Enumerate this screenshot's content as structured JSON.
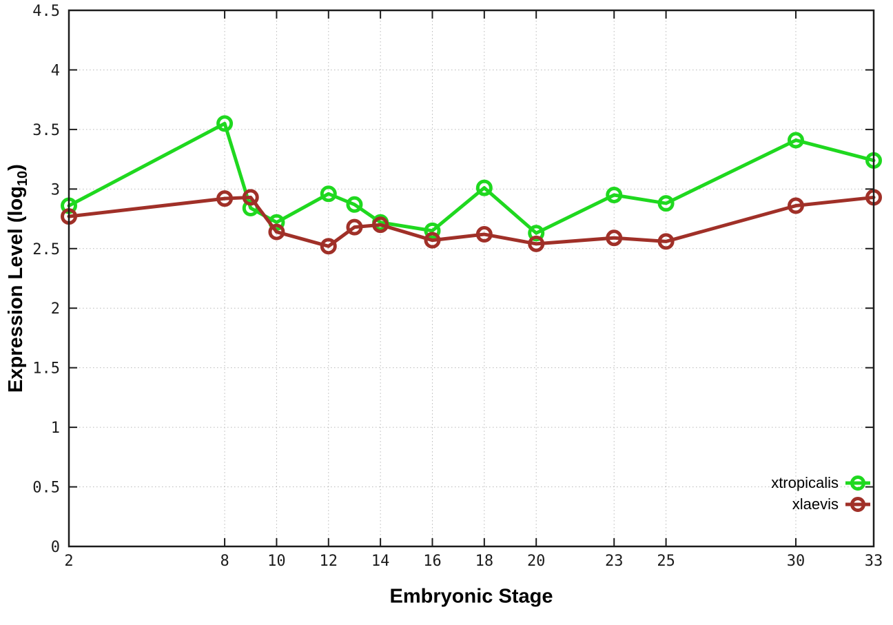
{
  "chart_data": {
    "type": "line",
    "title": "",
    "xlabel": "Embryonic Stage",
    "ylabel": "Expression Level (log10)",
    "xlim": [
      2,
      33
    ],
    "ylim": [
      0,
      4.5
    ],
    "grid": true,
    "grid_style": "dotted",
    "legend_position": "inside bottom-right",
    "marker": "open-circle",
    "x": [
      2,
      8,
      9,
      10,
      12,
      13,
      14,
      16,
      18,
      20,
      23,
      25,
      30,
      33
    ],
    "x_tick_values": [
      2,
      8,
      10,
      12,
      14,
      16,
      18,
      20,
      23,
      25,
      30,
      33
    ],
    "x_tick_labels": [
      "2",
      "8",
      "10",
      "12",
      "14",
      "16",
      "18",
      "20",
      "23",
      "25",
      "30",
      "33"
    ],
    "y_tick_values": [
      0,
      0.5,
      1,
      1.5,
      2,
      2.5,
      3,
      3.5,
      4,
      4.5
    ],
    "y_tick_labels": [
      "0",
      "0.5",
      "1",
      "1.5",
      "2",
      "2.5",
      "3",
      "3.5",
      "4",
      "4.5"
    ],
    "series": [
      {
        "name": "xtropicalis",
        "color": "#1fd81f",
        "values": [
          2.86,
          3.55,
          2.84,
          2.72,
          2.96,
          2.87,
          2.72,
          2.65,
          3.01,
          2.63,
          2.95,
          2.88,
          3.41,
          3.24
        ]
      },
      {
        "name": "xlaevis",
        "color": "#a03028",
        "values": [
          2.77,
          2.92,
          2.93,
          2.64,
          2.52,
          2.68,
          2.7,
          2.57,
          2.62,
          2.54,
          2.59,
          2.56,
          2.86,
          2.93
        ]
      }
    ]
  },
  "labels": {
    "x_axis_title": "Embryonic Stage",
    "y_axis_title_main": "Expression Level (log",
    "y_axis_title_sub": "10",
    "y_axis_title_close": ")"
  },
  "colors": {
    "axis": "#1c1c1c",
    "grid": "#b8b8b8",
    "tick_text": "#1c1c1c",
    "background": "#ffffff"
  }
}
